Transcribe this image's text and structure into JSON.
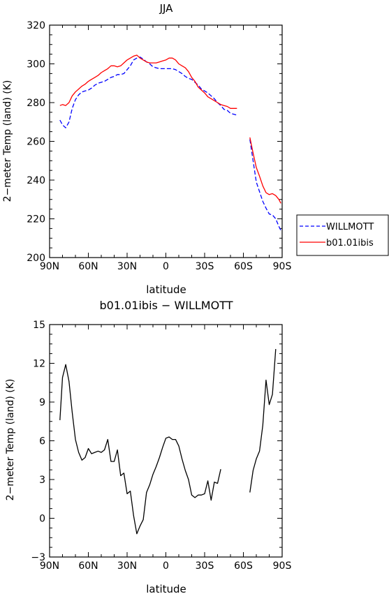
{
  "chart_data": [
    {
      "type": "line",
      "title": "JJA",
      "xlabel": "latitude",
      "ylabel": "2−meter Temp (land) (K)",
      "xlim": [
        90,
        -90
      ],
      "ylim": [
        200,
        320
      ],
      "x_ticks": [
        {
          "value": 90,
          "label": "90N"
        },
        {
          "value": 60,
          "label": "60N"
        },
        {
          "value": 30,
          "label": "30N"
        },
        {
          "value": 0,
          "label": "0"
        },
        {
          "value": -30,
          "label": "30S"
        },
        {
          "value": -60,
          "label": "60S"
        },
        {
          "value": -90,
          "label": "90S"
        }
      ],
      "y_ticks": [
        200,
        220,
        240,
        260,
        280,
        300,
        320
      ],
      "legend_position": "right",
      "series": [
        {
          "name": "WILLMOTT",
          "color": "#0000ff",
          "dash": "dashed",
          "segments": [
            [
              [
                82,
                271
              ],
              [
                80,
                268.5
              ],
              [
                77.5,
                267
              ],
              [
                75,
                270
              ],
              [
                72.5,
                277
              ],
              [
                70,
                281.5
              ],
              [
                67.5,
                284
              ],
              [
                65,
                285.5
              ],
              [
                62.5,
                286
              ],
              [
                60,
                286.5
              ],
              [
                57.5,
                287.5
              ],
              [
                55,
                289
              ],
              [
                52.5,
                290
              ],
              [
                50,
                290.5
              ],
              [
                47.5,
                291
              ],
              [
                45,
                292
              ],
              [
                42.5,
                293
              ],
              [
                40,
                293.5
              ],
              [
                37.5,
                294.5
              ],
              [
                35,
                294.5
              ],
              [
                32.5,
                295
              ],
              [
                30,
                297
              ],
              [
                27.5,
                299
              ],
              [
                25,
                302
              ],
              [
                22.5,
                303
              ],
              [
                20,
                303.5
              ],
              [
                17.5,
                302.5
              ],
              [
                15,
                301
              ],
              [
                12.5,
                300
              ],
              [
                10,
                298.5
              ],
              [
                7.5,
                298
              ],
              [
                5,
                297.5
              ],
              [
                2.5,
                297.5
              ],
              [
                0,
                297.5
              ],
              [
                -2.5,
                297.5
              ],
              [
                -5,
                297.5
              ],
              [
                -7.5,
                297
              ],
              [
                -10,
                296
              ],
              [
                -12.5,
                295
              ],
              [
                -15,
                293.5
              ],
              [
                -17.5,
                292.5
              ],
              [
                -20,
                292
              ],
              [
                -22.5,
                290.5
              ],
              [
                -25,
                289
              ],
              [
                -27.5,
                287
              ],
              [
                -30,
                286
              ],
              [
                -32.5,
                285
              ],
              [
                -35,
                283.5
              ],
              [
                -37.5,
                282
              ],
              [
                -40,
                280
              ],
              [
                -42.5,
                278.5
              ],
              [
                -45,
                276.5
              ],
              [
                -47.5,
                276
              ],
              [
                -50,
                274.5
              ],
              [
                -52.5,
                274
              ],
              [
                -55,
                273.5
              ]
            ],
            [
              [
                -65,
                261
              ],
              [
                -67.5,
                250
              ],
              [
                -70,
                239
              ],
              [
                -72.5,
                234
              ],
              [
                -75,
                229
              ],
              [
                -77.5,
                225.5
              ],
              [
                -80,
                222.5
              ],
              [
                -82.5,
                222
              ],
              [
                -85,
                220
              ],
              [
                -87.5,
                216
              ],
              [
                -89,
                214
              ]
            ]
          ]
        },
        {
          "name": "b01.01ibis",
          "color": "#ff0000",
          "dash": "solid",
          "segments": [
            [
              [
                82,
                278.5
              ],
              [
                80,
                279
              ],
              [
                77.5,
                278.5
              ],
              [
                75,
                280
              ],
              [
                72.5,
                283.5
              ],
              [
                70,
                285.5
              ],
              [
                67.5,
                287
              ],
              [
                65,
                288.5
              ],
              [
                62.5,
                289.5
              ],
              [
                60,
                291
              ],
              [
                57.5,
                292
              ],
              [
                55,
                293
              ],
              [
                52.5,
                294
              ],
              [
                50,
                295.5
              ],
              [
                47.5,
                296.5
              ],
              [
                45,
                297.5
              ],
              [
                42.5,
                299
              ],
              [
                40,
                299
              ],
              [
                37.5,
                298.5
              ],
              [
                35,
                299
              ],
              [
                32.5,
                300.5
              ],
              [
                30,
                302
              ],
              [
                27.5,
                303
              ],
              [
                25,
                304
              ],
              [
                22.5,
                304.5
              ],
              [
                20,
                303
              ],
              [
                17.5,
                302
              ],
              [
                15,
                301
              ],
              [
                12.5,
                300.5
              ],
              [
                10,
                300.5
              ],
              [
                7.5,
                300.5
              ],
              [
                5,
                301
              ],
              [
                2.5,
                301.5
              ],
              [
                0,
                302
              ],
              [
                -2.5,
                303
              ],
              [
                -5,
                303
              ],
              [
                -7.5,
                302
              ],
              [
                -10,
                300
              ],
              [
                -12.5,
                299
              ],
              [
                -15,
                298
              ],
              [
                -17.5,
                296
              ],
              [
                -20,
                293
              ],
              [
                -22.5,
                291
              ],
              [
                -25,
                288
              ],
              [
                -27.5,
                286.5
              ],
              [
                -30,
                285
              ],
              [
                -32.5,
                283
              ],
              [
                -35,
                282
              ],
              [
                -37.5,
                281
              ],
              [
                -40,
                280
              ],
              [
                -42.5,
                279
              ],
              [
                -45,
                278.5
              ],
              [
                -47.5,
                278
              ],
              [
                -50,
                277
              ],
              [
                -52.5,
                277
              ],
              [
                -55,
                277
              ]
            ],
            [
              [
                -65,
                262
              ],
              [
                -67.5,
                254
              ],
              [
                -70,
                246.5
              ],
              [
                -72.5,
                242
              ],
              [
                -75,
                237
              ],
              [
                -77.5,
                233.5
              ],
              [
                -80,
                232.5
              ],
              [
                -82.5,
                233
              ],
              [
                -85,
                232
              ],
              [
                -87.5,
                230
              ],
              [
                -89,
                228
              ]
            ]
          ]
        }
      ]
    },
    {
      "type": "line",
      "title": "b01.01ibis − WILLMOTT",
      "xlabel": "latitude",
      "ylabel": "2−meter Temp (land) (K)",
      "xlim": [
        90,
        -90
      ],
      "ylim": [
        -3,
        15
      ],
      "x_ticks": [
        {
          "value": 90,
          "label": "90N"
        },
        {
          "value": 60,
          "label": "60N"
        },
        {
          "value": 30,
          "label": "30N"
        },
        {
          "value": 0,
          "label": "0"
        },
        {
          "value": -30,
          "label": "30S"
        },
        {
          "value": -60,
          "label": "60S"
        },
        {
          "value": -90,
          "label": "90S"
        }
      ],
      "y_ticks": [
        -3,
        0,
        3,
        6,
        9,
        12,
        15
      ],
      "series": [
        {
          "color": "#000000",
          "dash": "solid",
          "segments": [
            [
              [
                82,
                7.6
              ],
              [
                80,
                10.9
              ],
              [
                77.5,
                11.9
              ],
              [
                75,
                10.6
              ],
              [
                72.5,
                8.2
              ],
              [
                70,
                6.1
              ],
              [
                67.5,
                5.1
              ],
              [
                65,
                4.5
              ],
              [
                62.5,
                4.7
              ],
              [
                60,
                5.4
              ],
              [
                57.5,
                5.0
              ],
              [
                55,
                5.1
              ],
              [
                52.5,
                5.2
              ],
              [
                50,
                5.1
              ],
              [
                47.5,
                5.3
              ],
              [
                45,
                6.1
              ],
              [
                42.5,
                4.4
              ],
              [
                40,
                4.4
              ],
              [
                37.5,
                5.3
              ],
              [
                35,
                3.3
              ],
              [
                32.5,
                3.5
              ],
              [
                30,
                1.9
              ],
              [
                27.5,
                2.1
              ],
              [
                25,
                0.2
              ],
              [
                22.5,
                -1.2
              ],
              [
                20,
                -0.6
              ],
              [
                17.5,
                -0.1
              ],
              [
                15,
                2.0
              ],
              [
                12.5,
                2.6
              ],
              [
                10,
                3.4
              ],
              [
                7.5,
                4.0
              ],
              [
                5,
                4.7
              ],
              [
                2.5,
                5.5
              ],
              [
                0,
                6.2
              ],
              [
                -2.5,
                6.3
              ],
              [
                -5,
                6.1
              ],
              [
                -7.5,
                6.1
              ],
              [
                -10,
                5.6
              ],
              [
                -12.5,
                4.6
              ],
              [
                -15,
                3.7
              ],
              [
                -17.5,
                3.0
              ],
              [
                -20,
                1.8
              ],
              [
                -22.5,
                1.6
              ],
              [
                -25,
                1.8
              ],
              [
                -27.5,
                1.8
              ],
              [
                -30,
                1.9
              ],
              [
                -32.5,
                2.9
              ],
              [
                -35,
                1.4
              ],
              [
                -37.5,
                2.8
              ],
              [
                -40,
                2.7
              ],
              [
                -42.5,
                3.8
              ]
            ],
            [
              [
                -65,
                2.0
              ],
              [
                -67.5,
                3.7
              ],
              [
                -70,
                4.6
              ],
              [
                -72.5,
                5.2
              ],
              [
                -75,
                7.2
              ],
              [
                -77.5,
                10.7
              ],
              [
                -80,
                8.8
              ],
              [
                -82.5,
                9.6
              ],
              [
                -85,
                13.1
              ]
            ]
          ]
        }
      ]
    }
  ]
}
